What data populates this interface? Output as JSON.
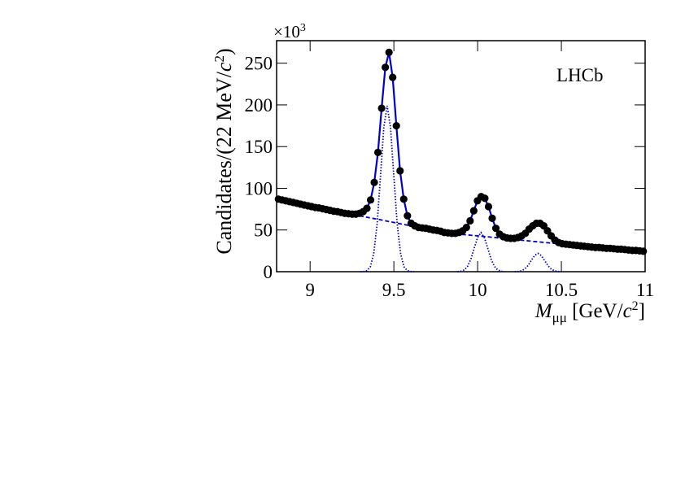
{
  "chart_data": {
    "type": "line",
    "y_multiplier": {
      "base": "×10",
      "exponent": "3"
    },
    "ylabel": [
      "Candidates/(22 MeV/",
      "c",
      "2",
      ")"
    ],
    "xlabel": [
      "M",
      "μμ",
      " [GeV/",
      "c",
      "2",
      "]"
    ],
    "annotation": "LHCb",
    "xlim": [
      8.8,
      11
    ],
    "xticks": [
      9,
      9.5,
      10,
      10.5,
      11
    ],
    "ylim": [
      0,
      277
    ],
    "yticks": [
      0,
      50,
      100,
      150,
      200,
      250
    ],
    "x": [
      8.811,
      8.833,
      8.855,
      8.877,
      8.899,
      8.921,
      8.943,
      8.965,
      8.987,
      9.009,
      9.031,
      9.053,
      9.075,
      9.097,
      9.119,
      9.141,
      9.163,
      9.185,
      9.207,
      9.229,
      9.251,
      9.273,
      9.295,
      9.317,
      9.339,
      9.361,
      9.383,
      9.405,
      9.427,
      9.449,
      9.471,
      9.493,
      9.515,
      9.537,
      9.559,
      9.581,
      9.603,
      9.625,
      9.647,
      9.669,
      9.691,
      9.713,
      9.735,
      9.757,
      9.779,
      9.801,
      9.823,
      9.845,
      9.867,
      9.889,
      9.911,
      9.933,
      9.955,
      9.977,
      9.999,
      10.021,
      10.043,
      10.065,
      10.087,
      10.109,
      10.131,
      10.153,
      10.175,
      10.197,
      10.219,
      10.241,
      10.263,
      10.285,
      10.307,
      10.329,
      10.351,
      10.373,
      10.395,
      10.417,
      10.439,
      10.461,
      10.483,
      10.505,
      10.527,
      10.549,
      10.571,
      10.593,
      10.615,
      10.637,
      10.659,
      10.681,
      10.703,
      10.725,
      10.747,
      10.769,
      10.791,
      10.813,
      10.835,
      10.857,
      10.879,
      10.901,
      10.923,
      10.945,
      10.967,
      10.989
    ],
    "series": [
      {
        "style": "markers",
        "color": "#000000",
        "values": [
          87,
          86,
          85,
          84,
          83,
          82,
          81,
          80,
          79,
          78,
          77,
          76.5,
          75.5,
          74.5,
          73.5,
          72.5,
          72,
          71,
          70,
          69.5,
          69,
          69,
          70,
          72,
          76,
          86,
          107,
          143,
          196,
          245,
          263,
          233,
          175,
          121,
          87,
          67,
          58,
          55,
          53,
          52.5,
          52,
          51,
          50,
          49.5,
          48.5,
          47,
          46.5,
          46,
          46,
          47,
          49,
          53,
          61,
          73,
          85,
          90,
          88,
          78,
          64,
          52,
          45,
          42,
          40.5,
          40,
          40,
          41,
          43,
          46,
          51,
          55,
          58,
          58,
          55,
          49,
          43,
          38,
          35,
          33.5,
          33,
          32.5,
          32,
          31.5,
          31,
          30.5,
          30,
          29.5,
          29,
          29,
          28.5,
          28,
          28,
          27.5,
          27,
          27,
          26.5,
          26,
          25.5,
          25.5,
          25,
          24.5
        ]
      },
      {
        "style": "solid",
        "color": "#0000cc",
        "values": [
          87,
          86,
          85,
          84,
          83,
          82,
          81,
          80,
          79,
          78,
          77,
          76.5,
          75.5,
          74.5,
          73.5,
          72.5,
          72,
          71,
          70,
          69.5,
          69,
          69,
          70,
          72,
          76,
          86,
          107,
          143,
          196,
          245,
          263,
          233,
          175,
          121,
          87,
          67,
          58,
          55,
          53,
          52.5,
          52,
          51,
          50,
          49.5,
          48.5,
          47,
          46.5,
          46,
          46,
          47,
          49,
          53,
          61,
          73,
          85,
          90,
          88,
          78,
          64,
          52,
          45,
          42,
          40.5,
          40,
          40,
          41,
          43,
          46,
          51,
          55,
          58,
          58,
          55,
          49,
          43,
          38,
          35,
          33.5,
          33,
          32.5,
          32,
          31.5,
          31,
          30.5,
          30,
          29.5,
          29,
          29,
          28.5,
          28,
          28,
          27.5,
          27,
          27,
          26.5,
          26,
          25.5,
          25.5,
          25,
          24.5
        ]
      },
      {
        "style": "dashed",
        "color": "#0000cc",
        "x": [
          8.8,
          9.0,
          9.2,
          9.4,
          9.6,
          9.8,
          10.0,
          10.2,
          10.4,
          10.6,
          10.8,
          11.0
        ],
        "values": [
          87,
          78,
          70.5,
          63,
          55,
          46.5,
          43,
          39,
          35,
          31.5,
          27.5,
          24
        ]
      },
      {
        "style": "dotted",
        "color": "#0000cc",
        "x": [
          9.3,
          9.32,
          9.34,
          9.36,
          9.38,
          9.4,
          9.42,
          9.44,
          9.46,
          9.48,
          9.5,
          9.52,
          9.54,
          9.56,
          9.58,
          9.6,
          9.62
        ],
        "values": [
          0,
          0.2,
          1.4,
          6,
          22,
          57,
          114,
          173,
          199,
          173,
          114,
          57,
          22,
          6,
          1.4,
          0.2,
          0
        ]
      },
      {
        "style": "dotted",
        "color": "#0000cc",
        "x": [
          9.88,
          9.9,
          9.92,
          9.94,
          9.96,
          9.98,
          10.0,
          10.02,
          10.04,
          10.06,
          10.08,
          10.1,
          10.12,
          10.14,
          10.16
        ],
        "values": [
          0,
          0.5,
          2.1,
          6.4,
          15.3,
          28.5,
          41,
          47,
          41,
          28.5,
          15.3,
          6.4,
          2.1,
          0.5,
          0
        ]
      },
      {
        "style": "dotted",
        "color": "#0000cc",
        "x": [
          10.22,
          10.24,
          10.26,
          10.28,
          10.3,
          10.32,
          10.34,
          10.36,
          10.38,
          10.4,
          10.42,
          10.44,
          10.46,
          10.48,
          10.5
        ],
        "values": [
          0,
          0.2,
          1,
          3,
          7.2,
          13.3,
          19.4,
          22,
          19.4,
          13.3,
          7.2,
          3,
          1,
          0.2,
          0
        ]
      }
    ]
  }
}
